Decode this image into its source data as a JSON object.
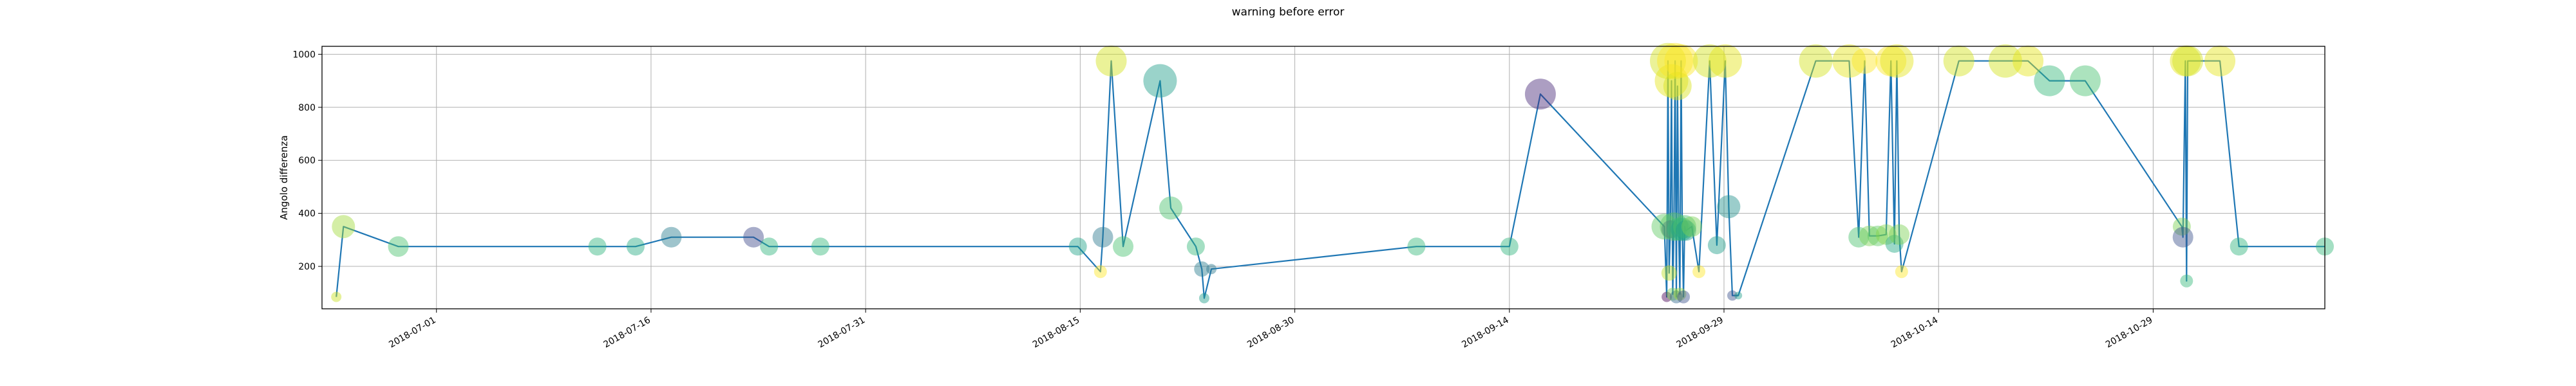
{
  "chart_data": {
    "type": "scatter",
    "title": "warning before error",
    "xlabel": "",
    "ylabel": "Angolo differenza",
    "grid": true,
    "legend": "none",
    "x_range": [
      "2018-06-23",
      "2018-11-10"
    ],
    "ylim": [
      40,
      1030
    ],
    "y_ticks": [
      200,
      400,
      600,
      800,
      1000
    ],
    "x_ticks": [
      "2018-07-01",
      "2018-07-16",
      "2018-07-31",
      "2018-08-15",
      "2018-08-30",
      "2018-09-14",
      "2018-09-29",
      "2018-10-14",
      "2018-10-29"
    ],
    "line_color": "#1f77b4",
    "series": [
      {
        "points": [
          {
            "x": "2018-06-24 00:00",
            "y": 85,
            "c": "#c8e020",
            "s": 8
          },
          {
            "x": "2018-06-24 12:00",
            "y": 350,
            "c": "#a0da39",
            "s": 18
          },
          {
            "x": "2018-06-28 08:00",
            "y": 275,
            "c": "#4ac16d",
            "s": 16
          },
          {
            "x": "2018-07-12 06:00",
            "y": 275,
            "c": "#2fb47c",
            "s": 14
          },
          {
            "x": "2018-07-14 22:00",
            "y": 275,
            "c": "#25ab82",
            "s": 14
          },
          {
            "x": "2018-07-17 10:00",
            "y": 310,
            "c": "#287c8e",
            "s": 16
          },
          {
            "x": "2018-07-23 04:00",
            "y": 310,
            "c": "#3e4989",
            "s": 16
          },
          {
            "x": "2018-07-24 06:00",
            "y": 275,
            "c": "#2fb47c",
            "s": 14
          },
          {
            "x": "2018-07-27 20:00",
            "y": 275,
            "c": "#35b779",
            "s": 14
          },
          {
            "x": "2018-08-14 20:00",
            "y": 275,
            "c": "#1fa187",
            "s": 14
          },
          {
            "x": "2018-08-16 10:00",
            "y": 180,
            "c": "#fde725",
            "s": 10
          },
          {
            "x": "2018-08-16 14:00",
            "y": 310,
            "c": "#2a788e",
            "s": 16
          },
          {
            "x": "2018-08-17 04:00",
            "y": 975,
            "c": "#d2e21b",
            "s": 24
          },
          {
            "x": "2018-08-18 00:00",
            "y": 275,
            "c": "#48c16e",
            "s": 16
          },
          {
            "x": "2018-08-20 14:00",
            "y": 900,
            "c": "#1f9e89",
            "s": 26
          },
          {
            "x": "2018-08-21 08:00",
            "y": 420,
            "c": "#4ac16d",
            "s": 18
          },
          {
            "x": "2018-08-23 02:00",
            "y": 275,
            "c": "#35b779",
            "s": 14
          },
          {
            "x": "2018-08-23 12:00",
            "y": 190,
            "c": "#287c8e",
            "s": 12
          },
          {
            "x": "2018-08-23 16:00",
            "y": 80,
            "c": "#1f9e89",
            "s": 8
          },
          {
            "x": "2018-08-24 04:00",
            "y": 190,
            "c": "#2a788e",
            "s": 8
          },
          {
            "x": "2018-09-07 12:00",
            "y": 275,
            "c": "#35b779",
            "s": 14
          },
          {
            "x": "2018-09-14 00:00",
            "y": 275,
            "c": "#2fb47c",
            "s": 14
          },
          {
            "x": "2018-09-16 04:00",
            "y": 850,
            "c": "#482878",
            "s": 24
          },
          {
            "x": "2018-09-24 20:00",
            "y": 350,
            "c": "#5ec962",
            "s": 20
          },
          {
            "x": "2018-09-25 00:00",
            "y": 85,
            "c": "#440154",
            "s": 8
          },
          {
            "x": "2018-09-25 02:00",
            "y": 975,
            "c": "#d2e21b",
            "s": 28
          },
          {
            "x": "2018-09-25 04:00",
            "y": 175,
            "c": "#bddf26",
            "s": 12
          },
          {
            "x": "2018-09-25 06:00",
            "y": 340,
            "c": "#3e4989",
            "s": 14
          },
          {
            "x": "2018-09-25 08:00",
            "y": 900,
            "c": "#e5e419",
            "s": 26
          },
          {
            "x": "2018-09-25 10:00",
            "y": 95,
            "c": "#7ad151",
            "s": 10
          },
          {
            "x": "2018-09-25 12:00",
            "y": 350,
            "c": "#5ec962",
            "s": 22
          },
          {
            "x": "2018-09-25 14:00",
            "y": 975,
            "c": "#fde725",
            "s": 28
          },
          {
            "x": "2018-09-25 16:00",
            "y": 85,
            "c": "#31688e",
            "s": 10
          },
          {
            "x": "2018-09-25 18:00",
            "y": 880,
            "c": "#d8e219",
            "s": 22
          },
          {
            "x": "2018-09-25 20:00",
            "y": 340,
            "c": "#35b779",
            "s": 18
          },
          {
            "x": "2018-09-25 22:00",
            "y": 95,
            "c": "#a0da39",
            "s": 10
          },
          {
            "x": "2018-09-26 00:00",
            "y": 975,
            "c": "#fde725",
            "s": 26
          },
          {
            "x": "2018-09-26 02:00",
            "y": 340,
            "c": "#22a884",
            "s": 18
          },
          {
            "x": "2018-09-26 04:00",
            "y": 85,
            "c": "#3b528b",
            "s": 10
          },
          {
            "x": "2018-09-26 06:00",
            "y": 350,
            "c": "#4ac16d",
            "s": 18
          },
          {
            "x": "2018-09-26 08:00",
            "y": 335,
            "c": "#1f9e89",
            "s": 16
          },
          {
            "x": "2018-09-26 18:00",
            "y": 350,
            "c": "#7ad151",
            "s": 16
          },
          {
            "x": "2018-09-27 06:00",
            "y": 180,
            "c": "#fde725",
            "s": 10
          },
          {
            "x": "2018-09-28 00:00",
            "y": 975,
            "c": "#d2e21b",
            "s": 26
          },
          {
            "x": "2018-09-28 12:00",
            "y": 280,
            "c": "#1f9e89",
            "s": 14
          },
          {
            "x": "2018-09-29 02:00",
            "y": 975,
            "c": "#e5e419",
            "s": 26
          },
          {
            "x": "2018-09-29 08:00",
            "y": 425,
            "c": "#21918c",
            "s": 18
          },
          {
            "x": "2018-09-29 14:00",
            "y": 90,
            "c": "#3b528b",
            "s": 8
          },
          {
            "x": "2018-09-30 00:00",
            "y": 90,
            "c": "#1f9e89",
            "s": 6
          },
          {
            "x": "2018-10-05 10:00",
            "y": 975,
            "c": "#d2e21b",
            "s": 26
          },
          {
            "x": "2018-10-07 18:00",
            "y": 975,
            "c": "#e5e419",
            "s": 26
          },
          {
            "x": "2018-10-08 10:00",
            "y": 310,
            "c": "#4ac16d",
            "s": 16
          },
          {
            "x": "2018-10-08 20:00",
            "y": 975,
            "c": "#fde725",
            "s": 20
          },
          {
            "x": "2018-10-09 04:00",
            "y": 315,
            "c": "#7ad151",
            "s": 16
          },
          {
            "x": "2018-10-09 18:00",
            "y": 315,
            "c": "#5ec962",
            "s": 16
          },
          {
            "x": "2018-10-10 08:00",
            "y": 320,
            "c": "#86d549",
            "s": 16
          },
          {
            "x": "2018-10-10 16:00",
            "y": 975,
            "c": "#fde725",
            "s": 24
          },
          {
            "x": "2018-10-10 22:00",
            "y": 285,
            "c": "#22a884",
            "s": 14
          },
          {
            "x": "2018-10-11 02:00",
            "y": 975,
            "c": "#e5e419",
            "s": 26
          },
          {
            "x": "2018-10-11 06:00",
            "y": 320,
            "c": "#7ad151",
            "s": 16
          },
          {
            "x": "2018-10-11 10:00",
            "y": 180,
            "c": "#fde725",
            "s": 10
          },
          {
            "x": "2018-10-15 10:00",
            "y": 975,
            "c": "#d2e21b",
            "s": 24
          },
          {
            "x": "2018-10-18 16:00",
            "y": 975,
            "c": "#d2e21b",
            "s": 26
          },
          {
            "x": "2018-10-20 06:00",
            "y": 975,
            "c": "#e5e419",
            "s": 24
          },
          {
            "x": "2018-10-21 18:00",
            "y": 900,
            "c": "#35b779",
            "s": 24
          },
          {
            "x": "2018-10-24 06:00",
            "y": 900,
            "c": "#48c16e",
            "s": 24
          },
          {
            "x": "2018-10-31 00:00",
            "y": 350,
            "c": "#7ad151",
            "s": 14
          },
          {
            "x": "2018-10-31 02:00",
            "y": 310,
            "c": "#3b528b",
            "s": 16
          },
          {
            "x": "2018-10-31 06:00",
            "y": 975,
            "c": "#e5e419",
            "s": 24
          },
          {
            "x": "2018-10-31 08:00",
            "y": 145,
            "c": "#35b779",
            "s": 10
          },
          {
            "x": "2018-10-31 10:00",
            "y": 975,
            "c": "#d2e21b",
            "s": 24
          },
          {
            "x": "2018-11-02 16:00",
            "y": 975,
            "c": "#e5e419",
            "s": 24
          },
          {
            "x": "2018-11-04 00:00",
            "y": 275,
            "c": "#2fb47c",
            "s": 14
          },
          {
            "x": "2018-11-10 00:00",
            "y": 275,
            "c": "#35b779",
            "s": 14
          }
        ]
      }
    ]
  }
}
